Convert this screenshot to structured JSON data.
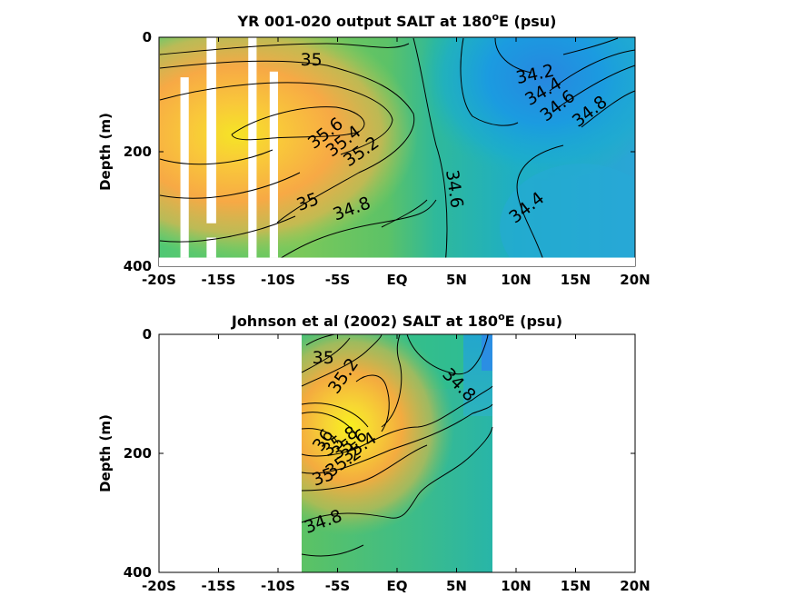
{
  "chart_data": [
    {
      "type": "heatmap",
      "title": "YR 001-020 output SALT at 180",
      "title_super": "o",
      "title_end": "E (psu)",
      "ylabel": "Depth (m)",
      "x_ticks": [
        "-20S",
        "-15S",
        "-10S",
        "-5S",
        "EQ",
        "5N",
        "10N",
        "15N",
        "20N"
      ],
      "x_values": [
        -20,
        -15,
        -10,
        -5,
        0,
        5,
        10,
        15,
        20
      ],
      "y_ticks": [
        "0",
        "200",
        "400"
      ],
      "y_values": [
        0,
        200,
        400
      ],
      "xlim": [
        -20,
        20
      ],
      "ylim": [
        0,
        400
      ],
      "y_reversed": true,
      "data_extent": {
        "x": [
          -20,
          20
        ],
        "depth": [
          0,
          385
        ]
      },
      "colormap": "parula",
      "color_range_psu": [
        34.0,
        36.0
      ],
      "salinity_cores": [
        {
          "x": -13,
          "depth": 160,
          "value": 35.9
        },
        {
          "x": 10,
          "depth": 60,
          "value": 34.1
        }
      ],
      "missing_data_columns_lat": [
        {
          "x": [
            -18.2,
            -17.5
          ],
          "depth": [
            70,
            385
          ]
        },
        {
          "x": [
            -16.0,
            -15.2
          ],
          "depth": [
            0,
            325
          ]
        },
        {
          "x": [
            -16.0,
            -15.2
          ],
          "depth": [
            350,
            385
          ]
        },
        {
          "x": [
            -12.5,
            -11.8
          ],
          "depth": [
            0,
            385
          ]
        },
        {
          "x": [
            -10.7,
            -10.0
          ],
          "depth": [
            60,
            385
          ]
        }
      ],
      "contour_labels": [
        {
          "text": "35",
          "x": -7.2,
          "depth": 40,
          "angle": 0
        },
        {
          "text": "35.6",
          "x": -6,
          "depth": 168,
          "angle": -38
        },
        {
          "text": "35.4",
          "x": -4.5,
          "depth": 182,
          "angle": -38
        },
        {
          "text": "35.2",
          "x": -3,
          "depth": 200,
          "angle": -35
        },
        {
          "text": "35",
          "x": -7.5,
          "depth": 288,
          "angle": -20
        },
        {
          "text": "34.8",
          "x": -3.8,
          "depth": 300,
          "angle": -20
        },
        {
          "text": "34.6",
          "x": 4.8,
          "depth": 265,
          "angle": 82
        },
        {
          "text": "34.4",
          "x": 10.9,
          "depth": 298,
          "angle": -38
        },
        {
          "text": "34.2",
          "x": 11.6,
          "depth": 65,
          "angle": -12
        },
        {
          "text": "34.4",
          "x": 12.3,
          "depth": 95,
          "angle": -30
        },
        {
          "text": "34.6",
          "x": 13.5,
          "depth": 120,
          "angle": -38
        },
        {
          "text": "34.8",
          "x": 16.2,
          "depth": 130,
          "angle": -38
        }
      ]
    },
    {
      "type": "heatmap",
      "title": "Johnson et al (2002) SALT at 180",
      "title_super": "o",
      "title_end": "E (psu)",
      "ylabel": "Depth (m)",
      "x_ticks": [
        "-20S",
        "-15S",
        "-10S",
        "-5S",
        "EQ",
        "5N",
        "10N",
        "15N",
        "20N"
      ],
      "x_values": [
        -20,
        -15,
        -10,
        -5,
        0,
        5,
        10,
        15,
        20
      ],
      "y_ticks": [
        "0",
        "200",
        "400"
      ],
      "y_values": [
        0,
        200,
        400
      ],
      "xlim": [
        -20,
        20
      ],
      "ylim": [
        0,
        400
      ],
      "y_reversed": true,
      "data_extent": {
        "x": [
          -8,
          8
        ],
        "depth": [
          0,
          400
        ]
      },
      "colormap": "parula",
      "color_range_psu": [
        34.0,
        36.0
      ],
      "salinity_cores": [
        {
          "x": -6.5,
          "depth": 180,
          "value": 36.0
        }
      ],
      "contour_labels": [
        {
          "text": "35",
          "x": -6.2,
          "depth": 40,
          "angle": 0
        },
        {
          "text": "35.2",
          "x": -4.5,
          "depth": 70,
          "angle": -55
        },
        {
          "text": "34.8",
          "x": 5.2,
          "depth": 85,
          "angle": 45
        },
        {
          "text": "36",
          "x": -6.2,
          "depth": 178,
          "angle": -55
        },
        {
          "text": "35.8",
          "x": -4.8,
          "depth": 180,
          "angle": -35
        },
        {
          "text": "35.6",
          "x": -4,
          "depth": 185,
          "angle": -35
        },
        {
          "text": "35.4",
          "x": -3.2,
          "depth": 190,
          "angle": -35
        },
        {
          "text": "35.2",
          "x": -4.5,
          "depth": 215,
          "angle": -35
        },
        {
          "text": "35",
          "x": -6.2,
          "depth": 240,
          "angle": -20
        },
        {
          "text": "34.8",
          "x": -6.2,
          "depth": 315,
          "angle": -20
        }
      ]
    }
  ]
}
